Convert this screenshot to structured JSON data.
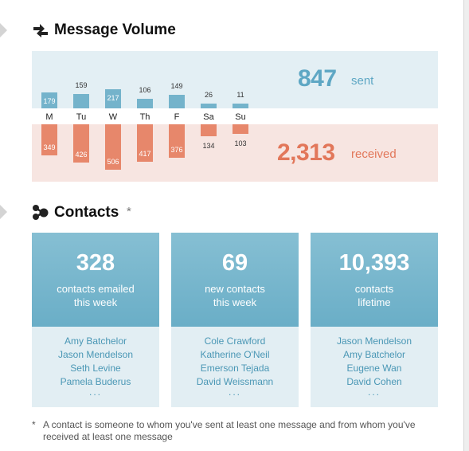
{
  "message_volume": {
    "title": "Message Volume",
    "icon": "swap-arrows-icon",
    "sent_total": "847",
    "sent_word": "sent",
    "received_total": "2,313",
    "received_word": "received",
    "colors": {
      "sent": "#74b3cb",
      "received": "#e7876b",
      "sent_text": "#5ea7c4",
      "received_text": "#e2775a"
    }
  },
  "chart_data": {
    "type": "bar",
    "categories": [
      "M",
      "Tu",
      "W",
      "Th",
      "F",
      "Sa",
      "Su"
    ],
    "series": [
      {
        "name": "sent",
        "values": [
          179,
          159,
          217,
          106,
          149,
          26,
          11
        ]
      },
      {
        "name": "received",
        "values": [
          349,
          426,
          506,
          417,
          376,
          134,
          103
        ]
      }
    ]
  },
  "contacts": {
    "title": "Contacts",
    "asterisk": "*",
    "icon": "molecule-icon",
    "cards": [
      {
        "number": "328",
        "caption_line1": "contacts emailed",
        "caption_line2": "this week",
        "names": [
          "Amy Batchelor",
          "Jason Mendelson",
          "Seth Levine",
          "Pamela Buderus"
        ],
        "more": "..."
      },
      {
        "number": "69",
        "caption_line1": "new contacts",
        "caption_line2": "this week",
        "names": [
          "Cole Crawford",
          "Katherine O'Neil",
          "Emerson Tejada",
          "David Weissmann"
        ],
        "more": "..."
      },
      {
        "number": "10,393",
        "caption_line1": "contacts",
        "caption_line2": "lifetime",
        "names": [
          "Jason Mendelson",
          "Amy Batchelor",
          "Eugene Wan",
          "David Cohen"
        ],
        "more": "..."
      }
    ],
    "footnote_star": "*",
    "footnote": "A contact is someone to whom you've sent at least one message and from whom you've received at least one message"
  }
}
